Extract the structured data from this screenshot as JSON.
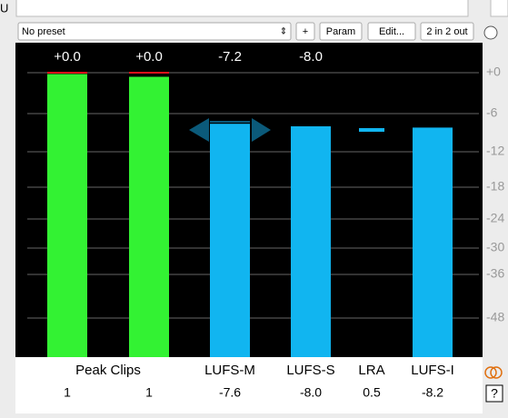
{
  "toolbar": {
    "left_label": "U",
    "preset": "No preset",
    "buttons": [
      "+",
      "Param",
      "Edit...",
      "2 in 2 out"
    ]
  },
  "meter": {
    "scale": [
      {
        "value": 0,
        "label": "+0"
      },
      -6,
      -12,
      -18,
      -24,
      -30,
      -36,
      -48
    ],
    "readouts": [
      "+0.0",
      "+0.0",
      "-7.2",
      "-8.0"
    ],
    "group_label": "Peak Clips",
    "bars": [
      {
        "level": -0.2,
        "peak": 0,
        "color": "#33f233",
        "value_label": "1"
      },
      {
        "level": -0.6,
        "peak": 0,
        "color": "#33f233",
        "value_label": "1"
      },
      {
        "name": "LUFS-M",
        "level": -7.6,
        "color": "#11b5f0",
        "value_label": "-7.6"
      },
      {
        "name": "LUFS-S",
        "level": -8.0,
        "color": "#11b5f0",
        "value_label": "-8.0"
      },
      {
        "name": "LRA",
        "value_label": "0.5"
      },
      {
        "name": "LUFS-I",
        "level": -8.2,
        "color": "#11b5f0",
        "value_label": "-8.2"
      }
    ],
    "help": "?"
  }
}
